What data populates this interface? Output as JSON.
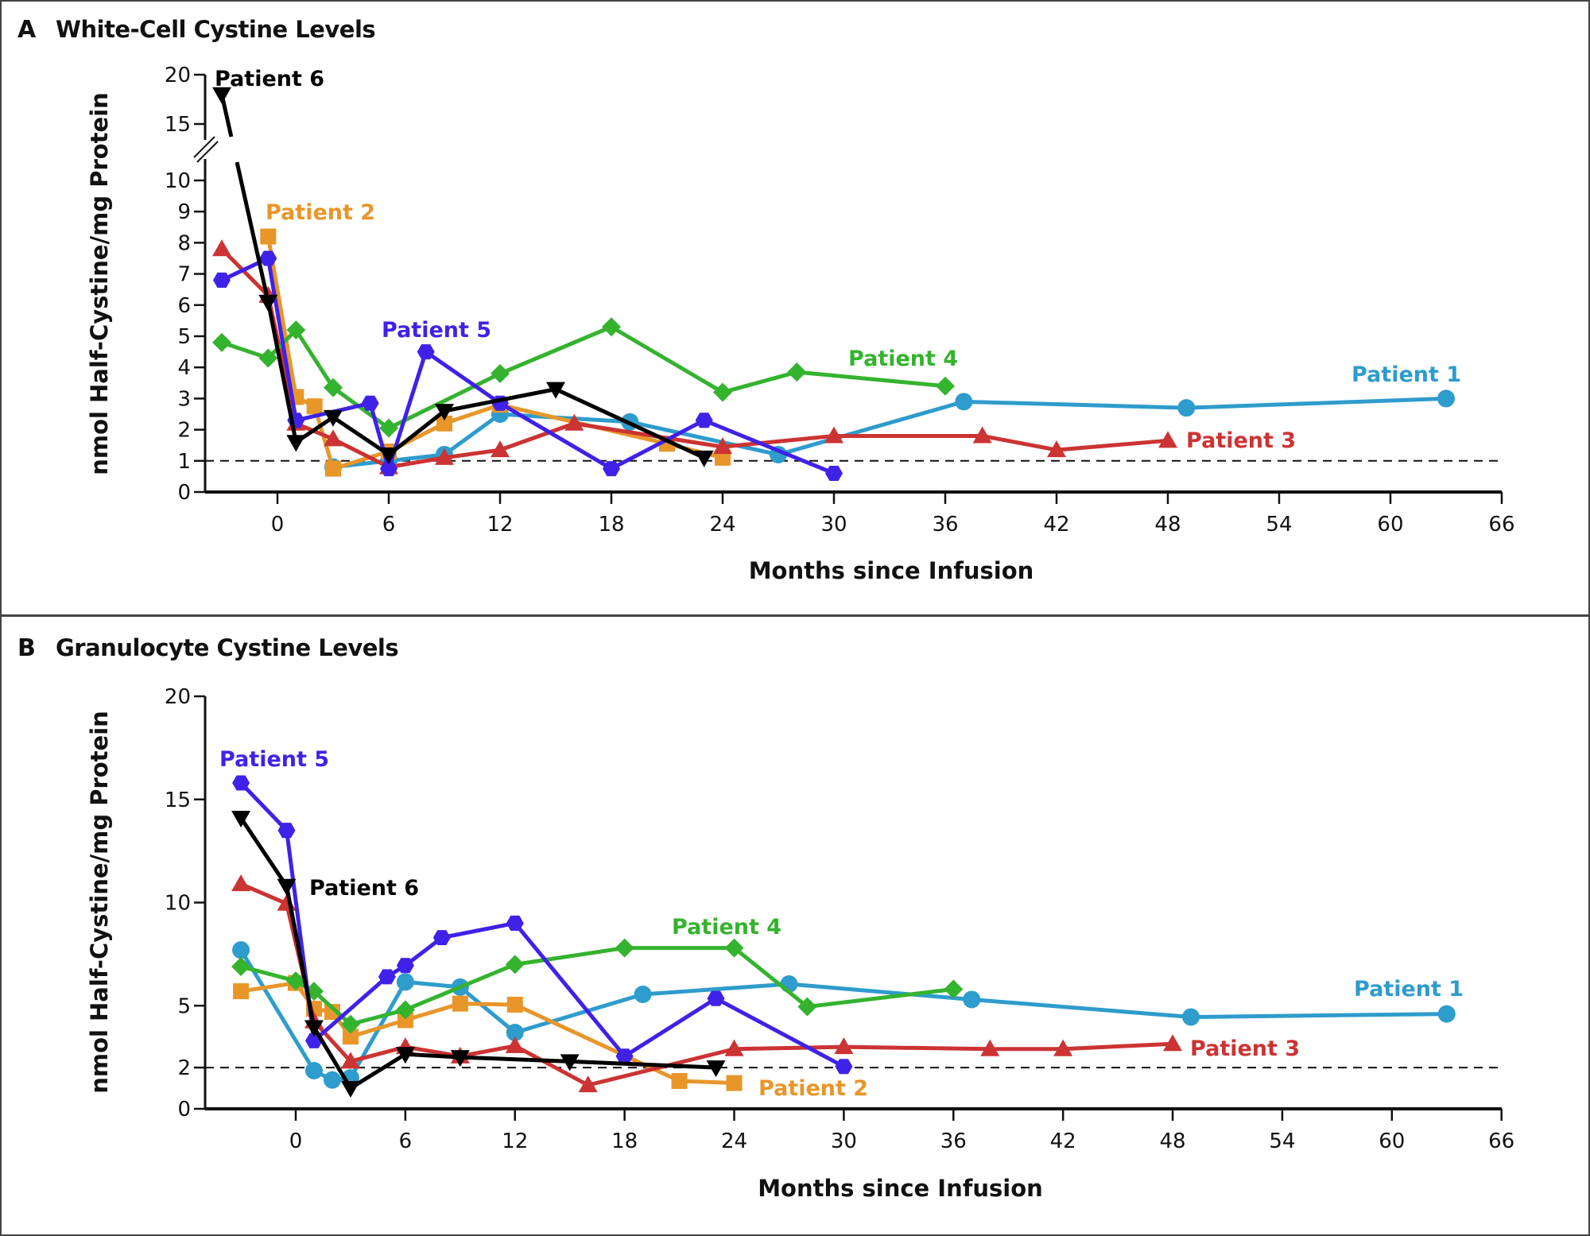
{
  "figure": {
    "panels": [
      {
        "letter": "A",
        "title": "White-Cell Cystine Levels"
      },
      {
        "letter": "B",
        "title": "Granulocyte Cystine Levels"
      }
    ]
  },
  "chart_data": [
    {
      "type": "line",
      "panel": "A",
      "title": "White-Cell Cystine Levels",
      "xlabel": "Months since Infusion",
      "ylabel": "nmol Half-Cystine/mg Protein",
      "xlim": [
        -4,
        66
      ],
      "xticks": [
        0,
        6,
        12,
        18,
        24,
        30,
        36,
        42,
        48,
        54,
        60,
        66
      ],
      "ylim": [
        0,
        20
      ],
      "yaxis_break": [
        10,
        15
      ],
      "yticks": [
        0,
        1,
        2,
        3,
        4,
        5,
        6,
        7,
        8,
        9,
        10,
        15,
        20
      ],
      "reference_line": {
        "y": 1,
        "style": "dashed"
      },
      "grid": false,
      "series": [
        {
          "name": "Patient 1",
          "color": "#2e9ccc",
          "marker": "circle",
          "x": [
            3,
            6,
            9,
            12,
            19,
            27,
            37,
            49,
            63
          ],
          "y": [
            0.8,
            1.0,
            1.2,
            2.5,
            2.25,
            1.2,
            2.9,
            2.7,
            3.0
          ]
        },
        {
          "name": "Patient 2",
          "color": "#e8962a",
          "marker": "square",
          "x": [
            -0.5,
            1,
            2,
            3,
            6,
            9,
            12,
            21,
            24
          ],
          "y": [
            8.2,
            3.05,
            2.75,
            0.75,
            1.3,
            2.2,
            2.8,
            1.55,
            1.1
          ]
        },
        {
          "name": "Patient 3",
          "color": "#cc3333",
          "marker": "triangle-up",
          "x": [
            -3,
            -0.5,
            1,
            3,
            6,
            9,
            12,
            16,
            24,
            30,
            38,
            42,
            48
          ],
          "y": [
            7.8,
            6.3,
            2.2,
            1.7,
            0.8,
            1.1,
            1.35,
            2.2,
            1.45,
            1.8,
            1.8,
            1.35,
            1.65
          ]
        },
        {
          "name": "Patient 4",
          "color": "#34b32e",
          "marker": "diamond",
          "x": [
            -3,
            -0.5,
            1,
            3,
            6,
            12,
            18,
            24,
            28,
            36
          ],
          "y": [
            4.8,
            4.3,
            5.2,
            3.35,
            2.05,
            3.8,
            5.3,
            3.2,
            3.85,
            3.4
          ]
        },
        {
          "name": "Patient 5",
          "color": "#3f22e8",
          "marker": "hexagon",
          "x": [
            -3,
            -0.5,
            1,
            5,
            6,
            8,
            12,
            18,
            23,
            30
          ],
          "y": [
            6.8,
            7.5,
            2.3,
            2.85,
            0.75,
            4.5,
            2.85,
            0.75,
            2.3,
            0.6
          ]
        },
        {
          "name": "Patient 6",
          "color": "#000000",
          "marker": "triangle-down",
          "x": [
            -3,
            -0.5,
            1,
            3,
            6,
            9,
            15,
            23
          ],
          "y": [
            18,
            6.1,
            1.6,
            2.4,
            1.2,
            2.6,
            3.3,
            1.1
          ]
        }
      ],
      "annotations": [
        {
          "text": "Patient 6",
          "series": "Patient 6",
          "near": [
            -2.5,
            20
          ]
        },
        {
          "text": "Patient 2",
          "series": "Patient 2",
          "near": [
            -0.5,
            9
          ]
        },
        {
          "text": "Patient 5",
          "series": "Patient 5",
          "near": [
            6,
            5
          ]
        },
        {
          "text": "Patient 4",
          "series": "Patient 4",
          "near": [
            31,
            4.2
          ]
        },
        {
          "text": "Patient 1",
          "series": "Patient 1",
          "near": [
            58,
            3.6
          ]
        },
        {
          "text": "Patient 3",
          "series": "Patient 3",
          "near": [
            49,
            1.6
          ]
        }
      ]
    },
    {
      "type": "line",
      "panel": "B",
      "title": "Granulocyte Cystine Levels",
      "xlabel": "Months since Infusion",
      "ylabel": "nmol Half-Cystine/mg Protein",
      "xlim": [
        -5,
        66
      ],
      "xticks": [
        0,
        6,
        12,
        18,
        24,
        30,
        36,
        42,
        48,
        54,
        60,
        66
      ],
      "ylim": [
        0,
        20
      ],
      "yticks": [
        0,
        2,
        5,
        10,
        15,
        20
      ],
      "reference_line": {
        "y": 2,
        "style": "dashed"
      },
      "grid": false,
      "series": [
        {
          "name": "Patient 1",
          "color": "#2e9ccc",
          "marker": "circle",
          "x": [
            -3,
            1,
            2,
            3,
            6,
            9,
            12,
            19,
            27,
            37,
            49,
            63
          ],
          "y": [
            7.7,
            1.85,
            1.4,
            1.5,
            6.15,
            5.9,
            3.7,
            5.55,
            6.05,
            5.3,
            4.45,
            4.6
          ]
        },
        {
          "name": "Patient 2",
          "color": "#e8962a",
          "marker": "square",
          "x": [
            -3,
            0,
            1,
            2,
            3,
            6,
            9,
            12,
            21,
            24
          ],
          "y": [
            5.7,
            6.1,
            4.85,
            4.7,
            3.5,
            4.3,
            5.1,
            5.05,
            1.35,
            1.25
          ]
        },
        {
          "name": "Patient 3",
          "color": "#cc3333",
          "marker": "triangle-up",
          "x": [
            -3,
            -0.5,
            1,
            3,
            6,
            9,
            12,
            16,
            24,
            30,
            38,
            42,
            48
          ],
          "y": [
            10.9,
            9.95,
            4.25,
            2.3,
            3.0,
            2.55,
            3.05,
            1.15,
            2.9,
            3.0,
            2.9,
            2.9,
            3.15
          ]
        },
        {
          "name": "Patient 4",
          "color": "#34b32e",
          "marker": "diamond",
          "x": [
            -3,
            0,
            1,
            3,
            6,
            12,
            18,
            24,
            28,
            36
          ],
          "y": [
            6.9,
            6.2,
            5.7,
            4.1,
            4.8,
            7.0,
            7.8,
            7.8,
            4.95,
            5.8
          ]
        },
        {
          "name": "Patient 5",
          "color": "#3f22e8",
          "marker": "hexagon",
          "x": [
            -3,
            -0.5,
            1,
            5,
            6,
            8,
            12,
            18,
            23,
            30
          ],
          "y": [
            15.8,
            13.5,
            3.3,
            6.4,
            6.95,
            8.3,
            9.0,
            2.55,
            5.35,
            2.05
          ]
        },
        {
          "name": "Patient 6",
          "color": "#000000",
          "marker": "triangle-down",
          "x": [
            -3,
            -0.5,
            1,
            3,
            6,
            9,
            15,
            23
          ],
          "y": [
            14.1,
            10.8,
            3.95,
            1.0,
            2.65,
            2.5,
            2.3,
            2.0
          ]
        }
      ],
      "annotations": [
        {
          "text": "Patient 5",
          "series": "Patient 5",
          "near": [
            -4,
            16.5
          ]
        },
        {
          "text": "Patient 6",
          "series": "Patient 6",
          "near": [
            0.5,
            10.9
          ]
        },
        {
          "text": "Patient 4",
          "series": "Patient 4",
          "near": [
            20,
            8.9
          ]
        },
        {
          "text": "Patient 1",
          "series": "Patient 1",
          "near": [
            58,
            5.9
          ]
        },
        {
          "text": "Patient 3",
          "series": "Patient 3",
          "near": [
            49,
            3.1
          ]
        },
        {
          "text": "Patient 2",
          "series": "Patient 2",
          "near": [
            25,
            1.1
          ]
        }
      ]
    }
  ]
}
